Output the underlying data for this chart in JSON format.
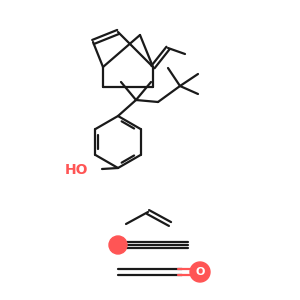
{
  "bg_color": "#ffffff",
  "line_color": "#1a1a1a",
  "red_atom_color": "#FF5555",
  "lw": 1.6,
  "fig_size": [
    3.0,
    3.0
  ],
  "dpi": 100
}
